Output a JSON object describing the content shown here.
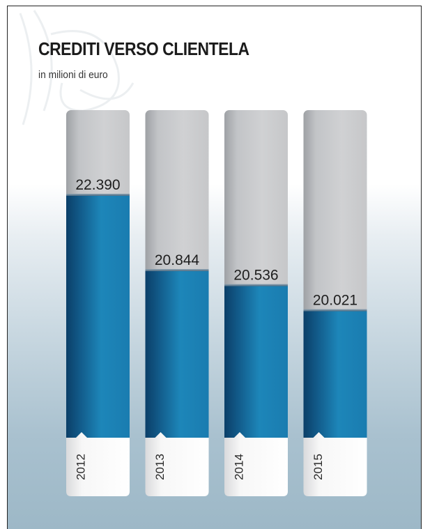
{
  "chart_data": {
    "type": "bar",
    "title": "CREDITI VERSO CLIENTELA",
    "subtitle": "in milioni di euro",
    "categories": [
      "2012",
      "2013",
      "2014",
      "2015"
    ],
    "values": [
      22390,
      20844,
      20536,
      20021
    ],
    "value_labels": [
      "22.390",
      "20.844",
      "20.536",
      "20.021"
    ],
    "colors": {
      "bar": "#1b78a8",
      "track": "#c5c6c8",
      "label_tab": "#ffffff"
    }
  }
}
